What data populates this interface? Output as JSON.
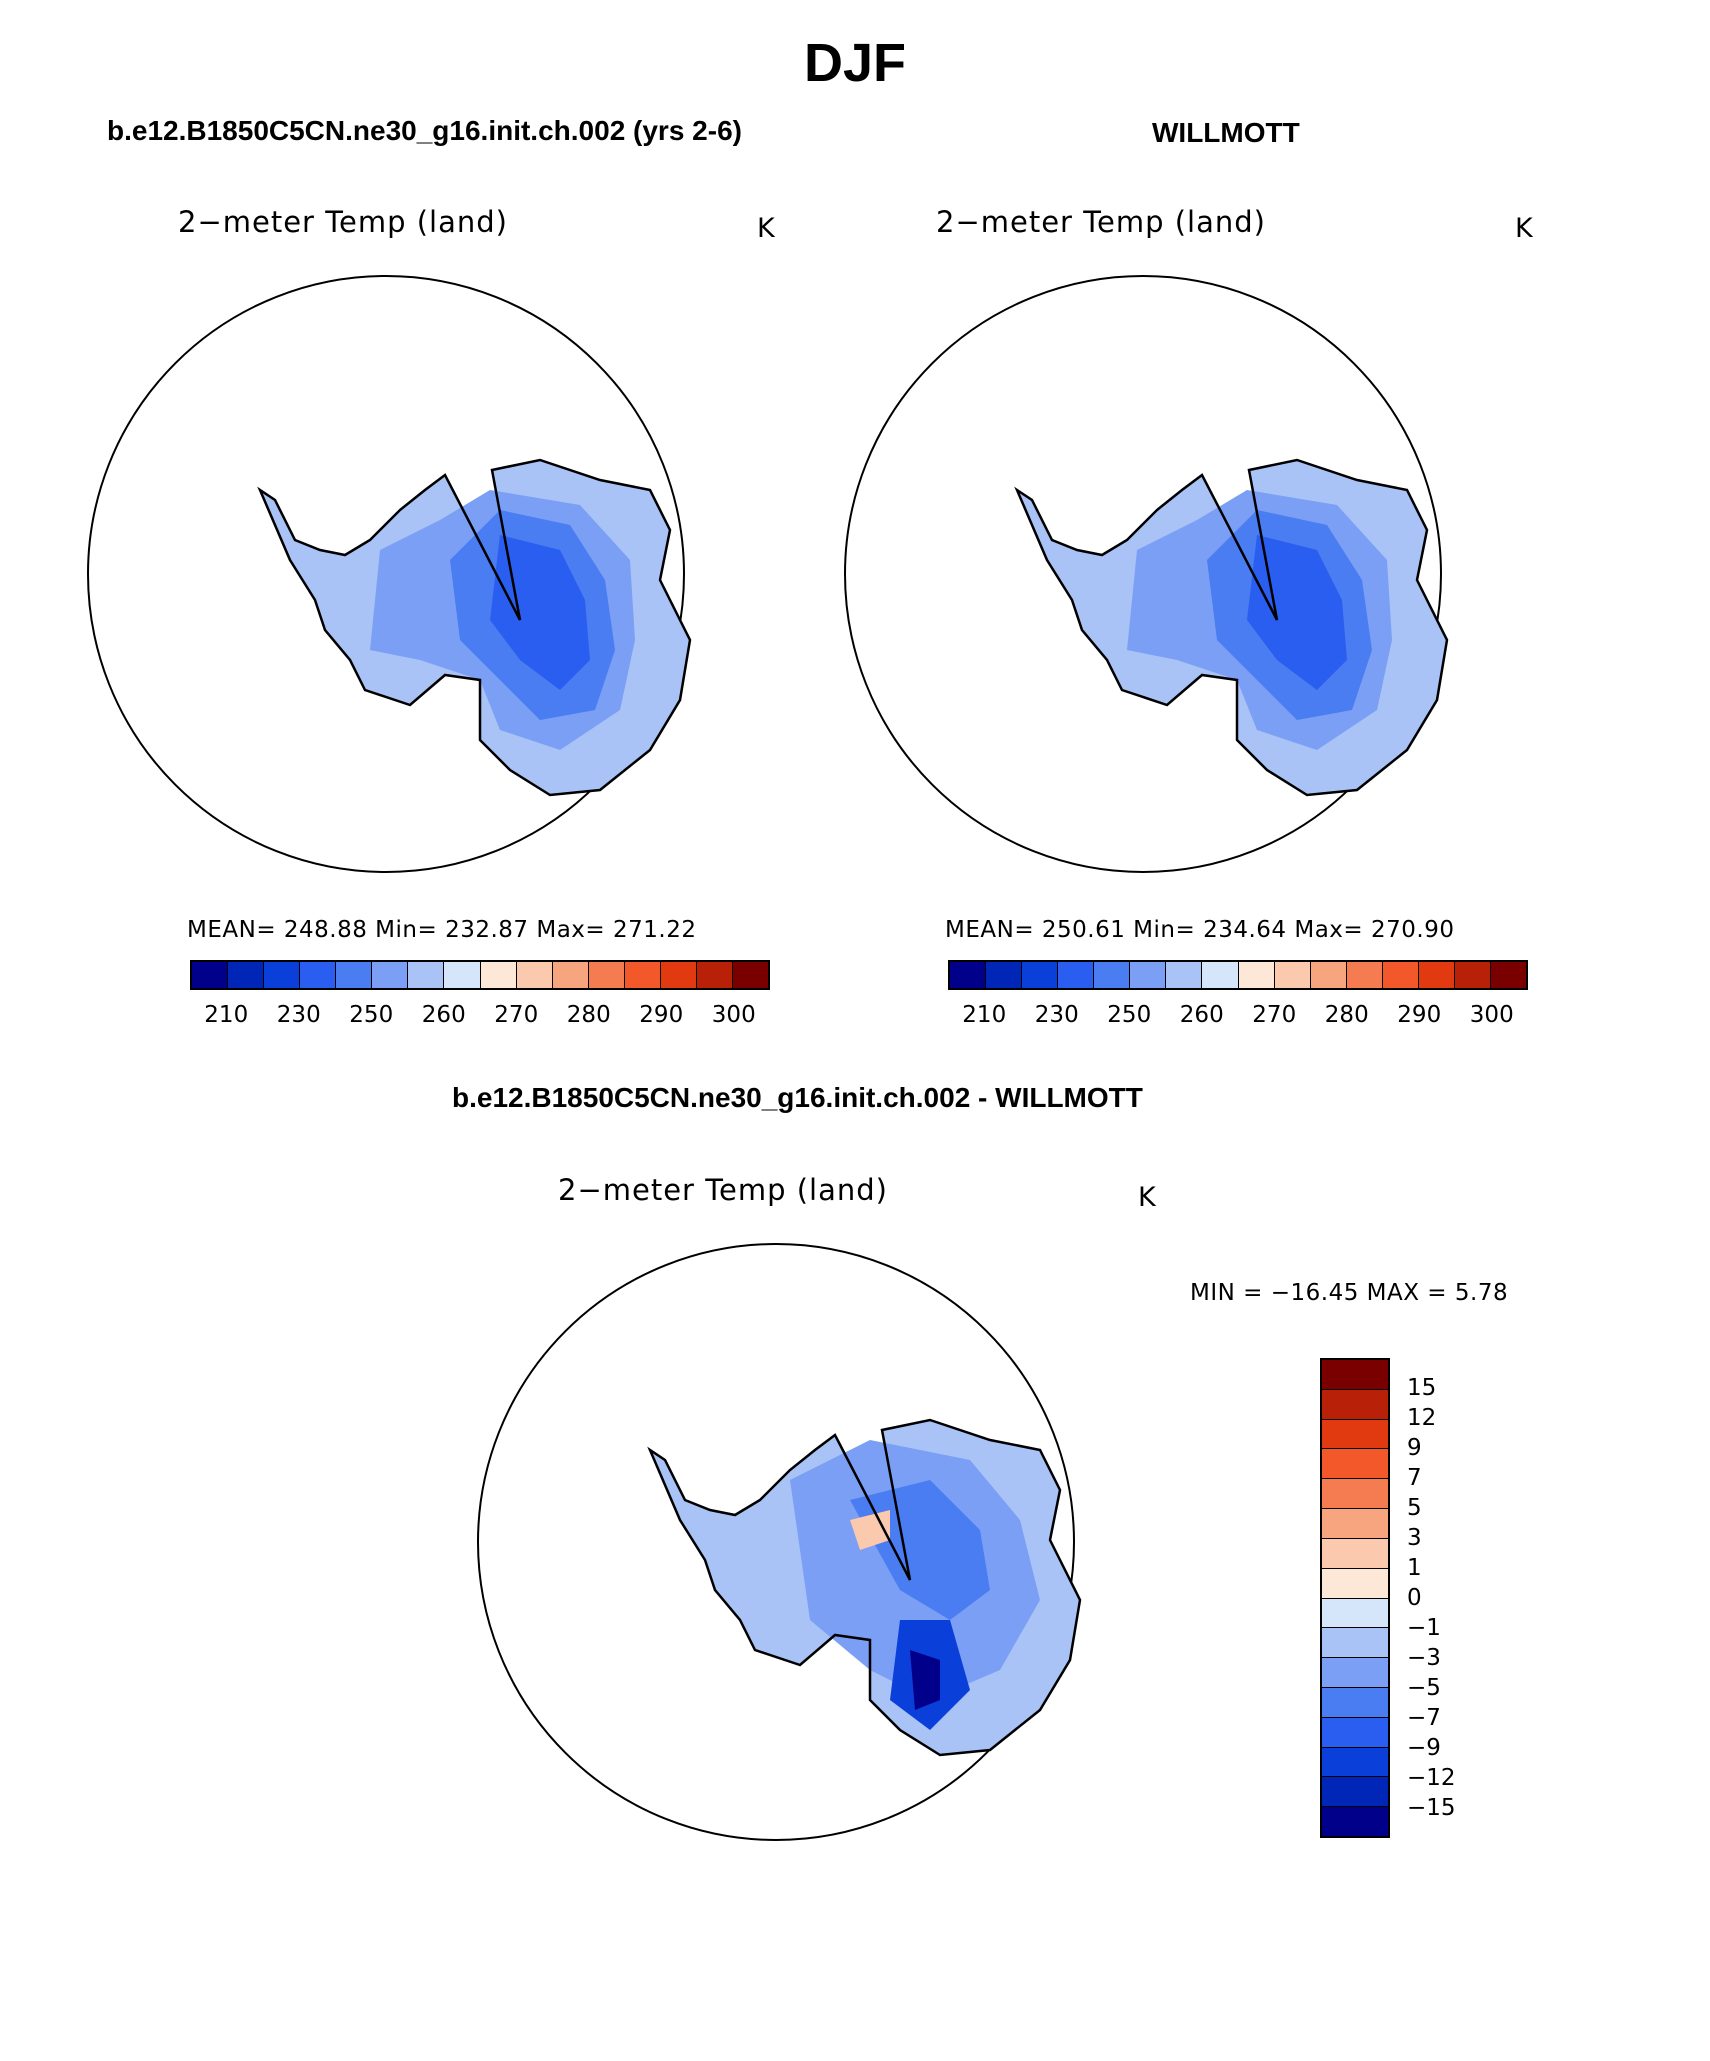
{
  "title": "DJF",
  "panels": [
    {
      "id": "model",
      "subtitle": "b.e12.B1850C5CN.ne30_g16.init.ch.002 (yrs 2-6)",
      "variable": "2−meter Temp (land)",
      "unit": "K",
      "stats": "MEAN= 248.88   Min= 232.87   Max= 271.22",
      "mean": 248.88,
      "min": 232.87,
      "max": 271.22
    },
    {
      "id": "obs",
      "subtitle": "WILLMOTT",
      "variable": "2−meter Temp (land)",
      "unit": "K",
      "stats": "MEAN= 250.61   Min= 234.64   Max= 270.90",
      "mean": 250.61,
      "min": 234.64,
      "max": 270.9
    }
  ],
  "diff_panel": {
    "subtitle": "b.e12.B1850C5CN.ne30_g16.init.ch.002 - WILLMOTT",
    "variable": "2−meter Temp (land)",
    "unit": "K",
    "minmax": "MIN = −16.45  MAX =     5.78",
    "min": -16.45,
    "max": 5.78
  },
  "abs_colorbar": {
    "colors": [
      "#00008b",
      "#0026b8",
      "#0a3fd9",
      "#2a5ef0",
      "#4a7cf2",
      "#7a9ff5",
      "#a9c3f7",
      "#d6e6fa",
      "#fde8d8",
      "#fbc9ad",
      "#f7a57f",
      "#f47c50",
      "#f2582a",
      "#e23a10",
      "#b82108",
      "#7a0000"
    ],
    "labels": [
      "210",
      "230",
      "250",
      "260",
      "270",
      "280",
      "290",
      "300"
    ]
  },
  "diff_colorbar": {
    "colors": [
      "#7a0000",
      "#b82108",
      "#e23a10",
      "#f2582a",
      "#f47c50",
      "#f7a57f",
      "#fbc9ad",
      "#fde8d8",
      "#d6e6fa",
      "#a9c3f7",
      "#7a9ff5",
      "#4a7cf2",
      "#2a5ef0",
      "#0a3fd9",
      "#0026b8",
      "#00008b"
    ],
    "labels": [
      "15",
      "12",
      "9",
      "7",
      "5",
      "3",
      "1",
      "0",
      "−1",
      "−3",
      "−5",
      "−7",
      "−9",
      "−12",
      "−15"
    ]
  }
}
